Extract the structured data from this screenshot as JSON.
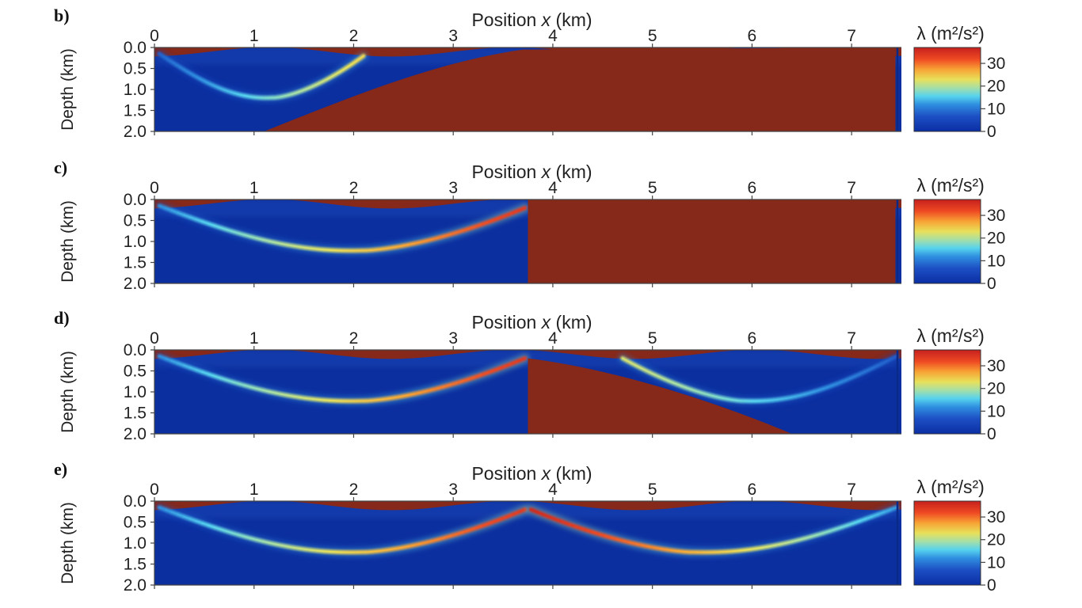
{
  "chart_data": [
    {
      "type": "heatmap",
      "panel_label": "b)",
      "xlabel_prefix": "Position ",
      "xlabel_var": "x",
      "xlabel_unit": " (km)",
      "ylabel": "Depth (km)",
      "xlim": [
        0,
        7.5
      ],
      "ylim": [
        0.0,
        2.0
      ],
      "xticks": [
        "0",
        "1",
        "2",
        "3",
        "4",
        "5",
        "6",
        "7"
      ],
      "yticks": [
        "0.0",
        "0.5",
        "1.0",
        "1.5",
        "2.0"
      ],
      "colorbar_label": "λ (m²/s²)",
      "colorbar_ticks": [
        "0",
        "10",
        "20",
        "30"
      ],
      "colorbar_range": [
        0,
        37
      ],
      "masked_region": {
        "type": "wedge",
        "boundary_x": [
          1.1,
          3.7
        ],
        "boundary_depth": [
          2.0,
          0.05
        ]
      },
      "beams": [
        {
          "source_x": 0.05,
          "end_x": 2.1,
          "depth_min": 1.2,
          "peak": 24
        }
      ]
    },
    {
      "type": "heatmap",
      "panel_label": "c)",
      "xlabel_prefix": "Position ",
      "xlabel_var": "x",
      "xlabel_unit": " (km)",
      "ylabel": "Depth (km)",
      "xlim": [
        0,
        7.5
      ],
      "ylim": [
        0.0,
        2.0
      ],
      "xticks": [
        "0",
        "1",
        "2",
        "3",
        "4",
        "5",
        "6",
        "7"
      ],
      "yticks": [
        "0.0",
        "0.5",
        "1.0",
        "1.5",
        "2.0"
      ],
      "colorbar_label": "λ (m²/s²)",
      "colorbar_ticks": [
        "0",
        "10",
        "20",
        "30"
      ],
      "colorbar_range": [
        0,
        37
      ],
      "masked_region": {
        "type": "vertical",
        "x_start": 3.75
      },
      "beams": [
        {
          "source_x": 0.05,
          "end_x": 3.72,
          "depth_min": 1.22,
          "peak": 34
        }
      ]
    },
    {
      "type": "heatmap",
      "panel_label": "d)",
      "xlabel_prefix": "Position ",
      "xlabel_var": "x",
      "xlabel_unit": " (km)",
      "ylabel": "Depth (km)",
      "xlim": [
        0,
        7.5
      ],
      "ylim": [
        0.0,
        2.0
      ],
      "xticks": [
        "0",
        "1",
        "2",
        "3",
        "4",
        "5",
        "6",
        "7"
      ],
      "yticks": [
        "0.0",
        "0.5",
        "1.0",
        "1.5",
        "2.0"
      ],
      "colorbar_label": "λ (m²/s²)",
      "colorbar_ticks": [
        "0",
        "10",
        "20",
        "30"
      ],
      "colorbar_range": [
        0,
        37
      ],
      "masked_region": {
        "type": "wedge-right",
        "x_start": 3.75,
        "boundary_x": [
          3.75,
          6.4
        ],
        "boundary_depth": [
          0.2,
          2.0
        ]
      },
      "beams": [
        {
          "source_x": 0.05,
          "end_x": 3.72,
          "depth_min": 1.22,
          "peak": 34
        },
        {
          "source_x": 7.45,
          "end_x": 4.7,
          "depth_min": 1.22,
          "peak": 22
        }
      ]
    },
    {
      "type": "heatmap",
      "panel_label": "e)",
      "xlabel_prefix": "Position ",
      "xlabel_var": "x",
      "xlabel_unit": " (km)",
      "ylabel": "Depth (km)",
      "xlim": [
        0,
        7.5
      ],
      "ylim": [
        0.0,
        2.0
      ],
      "xticks": [
        "0",
        "1",
        "2",
        "3",
        "4",
        "5",
        "6",
        "7"
      ],
      "yticks": [
        "0.0",
        "0.5",
        "1.0",
        "1.5",
        "2.0"
      ],
      "colorbar_label": "λ (m²/s²)",
      "colorbar_ticks": [
        "0",
        "10",
        "20",
        "30"
      ],
      "colorbar_range": [
        0,
        37
      ],
      "masked_region": {
        "type": "none"
      },
      "beams": [
        {
          "source_x": 0.05,
          "end_x": 3.72,
          "depth_min": 1.22,
          "peak": 34
        },
        {
          "source_x": 7.45,
          "end_x": 3.78,
          "depth_min": 1.22,
          "peak": 36
        }
      ]
    }
  ]
}
